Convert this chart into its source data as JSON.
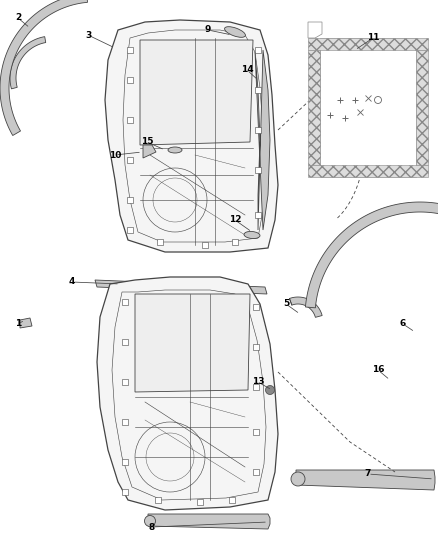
{
  "bg_color": "#ffffff",
  "line_color": "#444444",
  "gray_fill": "#c8c8c8",
  "dark_gray": "#888888",
  "light_gray": "#e0e0e0",
  "fig_width": 4.38,
  "fig_height": 5.33,
  "dpi": 100
}
